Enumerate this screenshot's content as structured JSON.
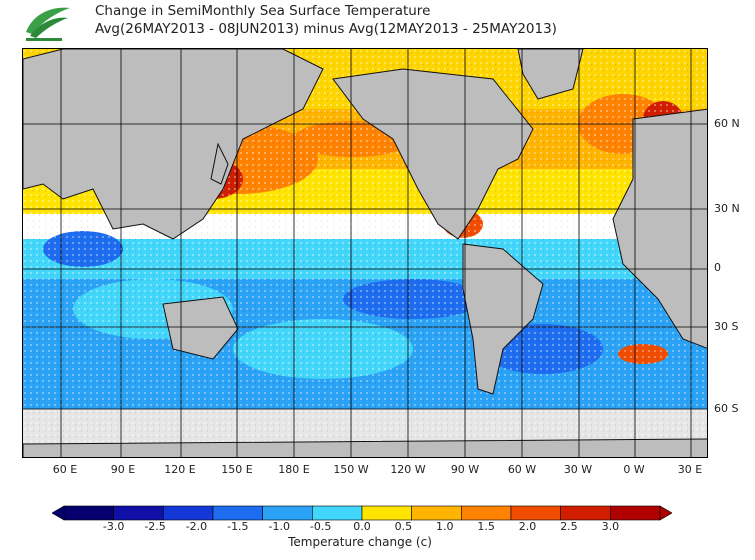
{
  "header": {
    "title_line1": "Change in SemiMonthly Sea Surface Temperature",
    "title_line2": "Avg(26MAY2013 - 08JUN2013) minus Avg(12MAY2013 - 25MAY2013)"
  },
  "map": {
    "lat_labels": [
      "60 N",
      "30 N",
      "0",
      "30 S",
      "60 S"
    ],
    "lon_labels": [
      "60 E",
      "90 E",
      "120 E",
      "150 E",
      "180 E",
      "150 W",
      "120 W",
      "90 W",
      "60 W",
      "30 W",
      "0 W",
      "30 E"
    ],
    "colors": {
      "land": "#bdbdbd",
      "ice": "#e6e6e6",
      "coast": "#111111",
      "grid": "#000000"
    }
  },
  "colorbar": {
    "ticks": [
      "-3.0",
      "-2.5",
      "-2.0",
      "-1.5",
      "-1.0",
      "-0.5",
      "0.0",
      "0.5",
      "1.0",
      "1.5",
      "2.0",
      "2.5",
      "3.0"
    ],
    "label": "Temperature change  (c)",
    "colors": [
      "#06006e",
      "#1010a8",
      "#1438d8",
      "#1e6cf0",
      "#2aa2f6",
      "#42d6fb",
      "#ffffff",
      "#ffe400",
      "#ffb400",
      "#ff8200",
      "#f04d00",
      "#d21e00",
      "#b00000"
    ]
  }
}
